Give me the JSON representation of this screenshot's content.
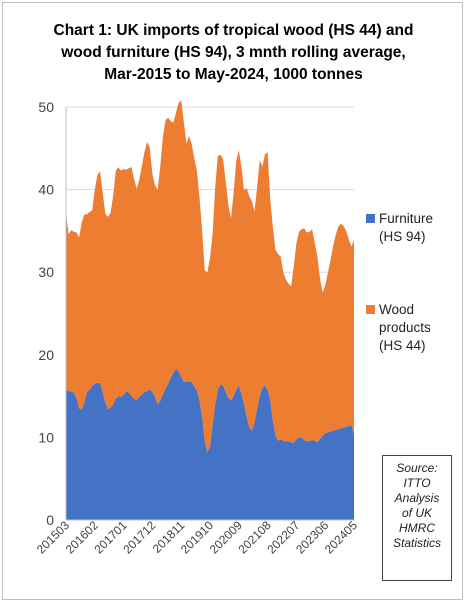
{
  "title_lines": [
    "Chart 1: UK imports of tropical wood (HS 44) and",
    "wood furniture (HS 94), 3 mnth rolling average,",
    "Mar-2015 to May-2024, 1000 tonnes"
  ],
  "legend": [
    {
      "lines": [
        "Furniture",
        "(HS 94)"
      ],
      "color": "#4472C4"
    },
    {
      "lines": [
        "Wood",
        "products",
        "(HS 44)"
      ],
      "color": "#ED7D31"
    }
  ],
  "source_lines": [
    "Source:",
    "ITTO",
    "Analysis",
    "of UK",
    "HMRC",
    "Statistics"
  ],
  "chart_data": {
    "type": "area",
    "stacked": true,
    "title": "Chart 1: UK imports of tropical wood (HS 44) and wood furniture (HS 94), 3 mnth rolling average, Mar-2015 to May-2024, 1000 tonnes",
    "ylim": [
      0,
      50
    ],
    "yticks": [
      0,
      10,
      20,
      30,
      40,
      50
    ],
    "grid": "horizontal",
    "legend_position": "right",
    "xticklabels": [
      "201503",
      "201602",
      "201701",
      "201712",
      "201811",
      "201910",
      "202009",
      "202108",
      "202207",
      "202306",
      "202405"
    ],
    "x_start": "201503",
    "x_end": "202405",
    "series": [
      {
        "name": "Furniture (HS 94)",
        "color": "#4472C4",
        "values": [
          15.8,
          15.6,
          15.6,
          15.4,
          14.8,
          13.5,
          13.4,
          14.2,
          15.5,
          15.8,
          16.2,
          16.5,
          16.6,
          16.6,
          15.5,
          14.2,
          13.4,
          13.6,
          14.0,
          14.7,
          15.0,
          14.9,
          15.2,
          15.6,
          15.4,
          15.0,
          14.7,
          14.5,
          14.9,
          15.2,
          15.5,
          15.6,
          15.8,
          15.5,
          14.9,
          14.0,
          14.4,
          15.2,
          15.9,
          16.5,
          17.2,
          17.8,
          18.3,
          18.0,
          17.3,
          16.7,
          16.8,
          16.8,
          16.7,
          16.2,
          15.7,
          14.5,
          12.5,
          9.5,
          8.2,
          8.9,
          11.5,
          14.0,
          15.8,
          16.4,
          16.3,
          15.5,
          14.8,
          14.5,
          15.0,
          15.8,
          16.3,
          15.3,
          14.0,
          12.5,
          11.2,
          10.8,
          11.8,
          13.5,
          15.0,
          16.0,
          16.3,
          15.8,
          14.5,
          12.0,
          10.2,
          9.6,
          9.8,
          9.6,
          9.5,
          9.5,
          9.4,
          9.3,
          9.8,
          10.0,
          10.0,
          9.7,
          9.5,
          9.6,
          9.7,
          9.6,
          9.4,
          9.8,
          10.2,
          10.5,
          10.6,
          10.7,
          10.8,
          10.9,
          11.0,
          11.1,
          11.2,
          11.3,
          11.4,
          11.5,
          10.4
        ]
      },
      {
        "name": "Wood products (HS 44)",
        "color": "#ED7D31",
        "values": [
          21.4,
          19.0,
          19.5,
          19.5,
          20.0,
          20.7,
          22.6,
          22.8,
          21.5,
          21.5,
          21.3,
          23.5,
          25.2,
          25.6,
          24.2,
          22.9,
          23.3,
          23.6,
          25.2,
          27.6,
          27.7,
          27.4,
          27.3,
          26.8,
          27.2,
          27.7,
          26.6,
          25.6,
          26.3,
          27.7,
          29.1,
          30.2,
          29.3,
          26.4,
          25.6,
          26.0,
          28.4,
          31.2,
          32.5,
          32.2,
          31.1,
          30.3,
          31.0,
          32.5,
          33.5,
          31.5,
          28.8,
          29.7,
          28.8,
          27.6,
          26.6,
          24.5,
          22.5,
          20.7,
          21.8,
          22.8,
          23.2,
          26.3,
          28.3,
          27.8,
          27.4,
          25.5,
          23.4,
          22.0,
          24.5,
          27.6,
          28.5,
          27.5,
          25.9,
          27.7,
          28.0,
          27.8,
          25.6,
          26.8,
          28.6,
          26.8,
          28.0,
          28.7,
          24.4,
          23.5,
          22.5,
          22.6,
          22.1,
          20.4,
          19.6,
          19.1,
          18.9,
          21.4,
          23.7,
          24.9,
          25.2,
          25.6,
          25.3,
          25.3,
          25.5,
          24.0,
          22.5,
          19.5,
          17.3,
          17.9,
          19.3,
          20.7,
          22.3,
          23.6,
          24.5,
          24.8,
          24.4,
          23.7,
          22.6,
          21.6,
          23.5
        ]
      }
    ]
  }
}
